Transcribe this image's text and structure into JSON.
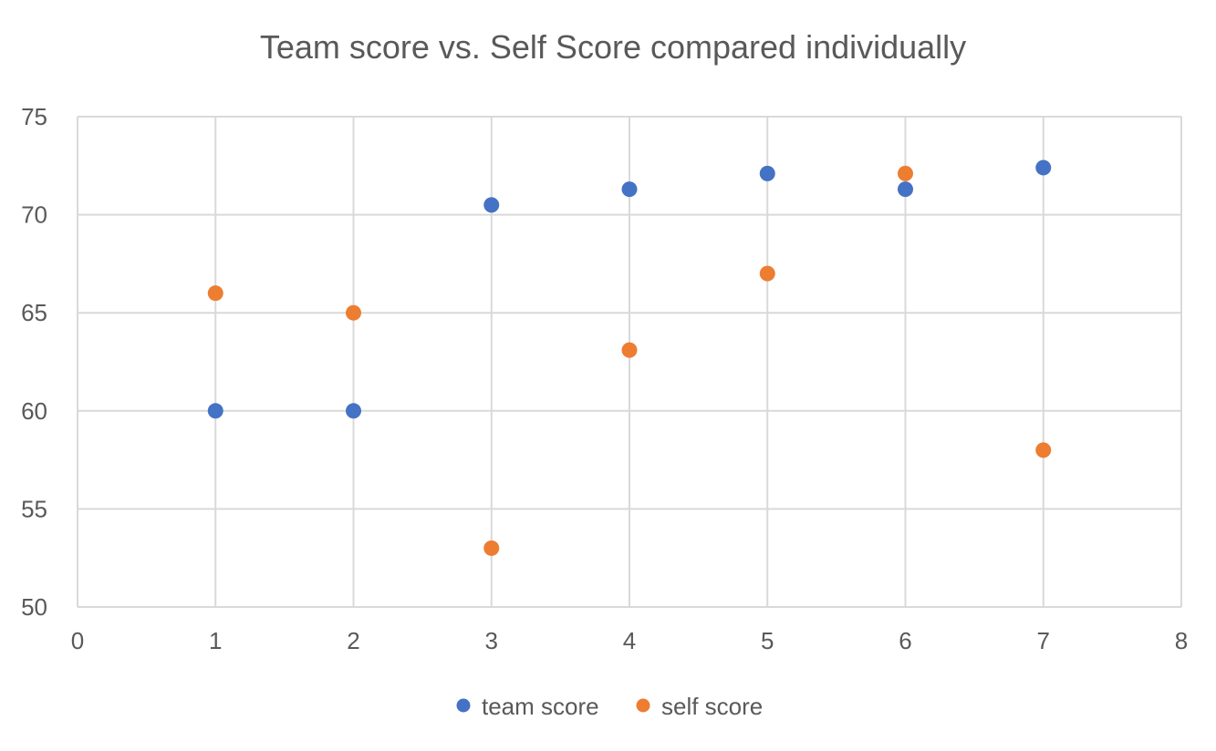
{
  "chart_data": {
    "type": "scatter",
    "title": "Team score vs. Self Score compared individually",
    "xlabel": "",
    "ylabel": "",
    "xlim": [
      0,
      8
    ],
    "ylim": [
      50,
      75
    ],
    "xticks": [
      0,
      1,
      2,
      3,
      4,
      5,
      6,
      7,
      8
    ],
    "yticks": [
      50,
      55,
      60,
      65,
      70,
      75
    ],
    "grid": true,
    "legend_position": "bottom",
    "series": [
      {
        "name": "team score",
        "color": "#4472C4",
        "points": [
          {
            "x": 1,
            "y": 60
          },
          {
            "x": 2,
            "y": 60
          },
          {
            "x": 3,
            "y": 70.5
          },
          {
            "x": 4,
            "y": 71.3
          },
          {
            "x": 5,
            "y": 72.1
          },
          {
            "x": 6,
            "y": 71.3
          },
          {
            "x": 7,
            "y": 72.4
          }
        ]
      },
      {
        "name": "self score",
        "color": "#ED7D31",
        "points": [
          {
            "x": 1,
            "y": 66
          },
          {
            "x": 2,
            "y": 65
          },
          {
            "x": 3,
            "y": 53
          },
          {
            "x": 4,
            "y": 63.1
          },
          {
            "x": 5,
            "y": 67
          },
          {
            "x": 6,
            "y": 72.1
          },
          {
            "x": 7,
            "y": 58
          }
        ]
      }
    ]
  }
}
